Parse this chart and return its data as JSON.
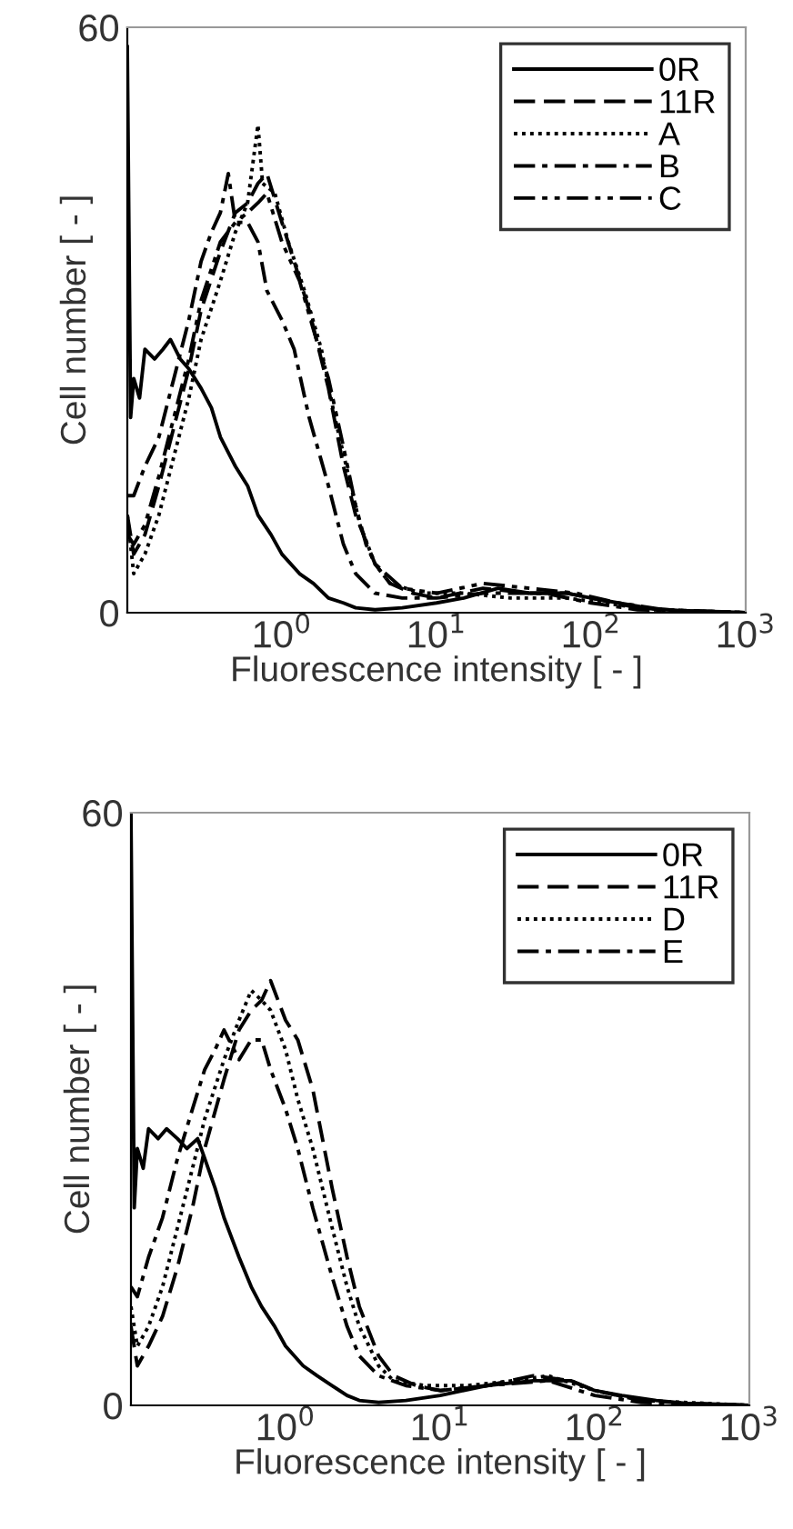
{
  "chart_data": [
    {
      "type": "line",
      "xlabel": "Fluorescence intensity [ - ]",
      "ylabel": "Cell number [ - ]",
      "log": "x",
      "xlim": [
        0.1,
        1000
      ],
      "ylim": [
        0,
        60
      ],
      "xticks": [
        {
          "value": 1,
          "label": "10$^{0}$"
        },
        {
          "value": 10,
          "label": "10$^{1}$"
        },
        {
          "value": 100,
          "label": "10$^{2}$"
        },
        {
          "value": 1000,
          "label": "10$^{3}$"
        }
      ],
      "yticks": [
        0,
        60
      ],
      "grid": false,
      "legend": "top right",
      "marker": "none",
      "series": [
        {
          "name": "0R",
          "color": "#000000",
          "line_style": "solid",
          "x": [
            0.1,
            0.105,
            0.11,
            0.12,
            0.13,
            0.15,
            0.17,
            0.19,
            0.22,
            0.25,
            0.3,
            0.35,
            0.4,
            0.5,
            0.6,
            0.7,
            0.85,
            1,
            1.3,
            1.6,
            2,
            2.5,
            3,
            4,
            6,
            10,
            15,
            25,
            40,
            70,
            100,
            150,
            250,
            400,
            700,
            1000
          ],
          "values": [
            58,
            20,
            24,
            22,
            27,
            26,
            27,
            28,
            26,
            25,
            23,
            21,
            18,
            15,
            13,
            10,
            8,
            6,
            4,
            3,
            1.5,
            1,
            0.5,
            0.3,
            0.5,
            1,
            1.5,
            2.5,
            2,
            2,
            1.5,
            1,
            0.4,
            0.2,
            0.1,
            0
          ]
        },
        {
          "name": "11R",
          "color": "#000000",
          "line_style": "dashed",
          "x": [
            0.1,
            0.11,
            0.13,
            0.16,
            0.2,
            0.25,
            0.3,
            0.4,
            0.5,
            0.6,
            0.7,
            0.8,
            1,
            1.2,
            1.5,
            2,
            2.5,
            3,
            4,
            5,
            7,
            10,
            20,
            40,
            70,
            100,
            200,
            400,
            1000
          ],
          "values": [
            10,
            6,
            8,
            13,
            19,
            25,
            31,
            37,
            41,
            42,
            44,
            45,
            40,
            36,
            31,
            23,
            15,
            10,
            5,
            3,
            2,
            1.5,
            2.5,
            2,
            2,
            1.5,
            0.5,
            0.2,
            0
          ]
        },
        {
          "name": "A",
          "color": "#000000",
          "line_style": "dotted",
          "x": [
            0.1,
            0.11,
            0.13,
            0.16,
            0.2,
            0.25,
            0.3,
            0.4,
            0.5,
            0.6,
            0.7,
            0.75,
            0.9,
            1.1,
            1.4,
            1.8,
            2.2,
            2.7,
            3.2,
            4,
            5,
            8,
            15,
            30,
            70,
            120,
            250,
            1000
          ],
          "values": [
            10,
            4,
            6,
            10,
            16,
            22,
            28,
            34,
            39,
            42,
            50,
            44,
            43,
            38,
            33,
            27,
            20,
            14,
            9,
            5,
            3,
            2,
            2,
            1.5,
            1.5,
            1,
            0.3,
            0
          ]
        },
        {
          "name": "B",
          "color": "#000000",
          "line_style": "dashdot",
          "x": [
            0.1,
            0.11,
            0.13,
            0.16,
            0.2,
            0.25,
            0.3,
            0.35,
            0.4,
            0.45,
            0.5,
            0.6,
            0.7,
            0.8,
            1,
            1.2,
            1.5,
            2,
            2.5,
            3,
            4,
            6,
            10,
            20,
            50,
            100,
            200,
            1000
          ],
          "values": [
            12,
            12,
            15,
            18,
            24,
            30,
            36,
            39,
            41,
            45,
            40,
            40,
            38,
            33,
            30,
            27,
            20,
            13,
            7,
            4,
            2,
            1.5,
            1.5,
            2,
            2,
            1,
            0.3,
            0
          ]
        },
        {
          "name": "C",
          "color": "#000000",
          "line_style": "dashdotdot",
          "x": [
            0.1,
            0.11,
            0.13,
            0.16,
            0.2,
            0.25,
            0.3,
            0.4,
            0.5,
            0.6,
            0.7,
            0.8,
            1,
            1.3,
            1.6,
            2,
            2.5,
            3,
            3.5,
            4,
            6,
            10,
            20,
            40,
            80,
            150,
            300,
            1000
          ],
          "values": [
            8,
            7,
            9,
            14,
            20,
            26,
            32,
            38,
            40,
            41,
            42,
            43,
            38,
            34,
            29,
            24,
            17,
            11,
            7,
            5,
            2.5,
            2,
            3,
            2.5,
            2,
            1,
            0.3,
            0
          ]
        }
      ]
    },
    {
      "type": "line",
      "xlabel": "Fluorescence intensity [ - ]",
      "ylabel": "Cell number [ - ]",
      "log": "x",
      "xlim": [
        0.1,
        1000
      ],
      "ylim": [
        0,
        60
      ],
      "xticks": [
        {
          "value": 1,
          "label": "10$^{0}$"
        },
        {
          "value": 10,
          "label": "10$^{1}$"
        },
        {
          "value": 100,
          "label": "10$^{2}$"
        },
        {
          "value": 1000,
          "label": "10$^{3}$"
        }
      ],
      "yticks": [
        0,
        60
      ],
      "grid": false,
      "legend": "top right",
      "marker": "none",
      "series": [
        {
          "name": "0R",
          "color": "#000000",
          "line_style": "solid",
          "x": [
            0.1,
            0.105,
            0.11,
            0.12,
            0.13,
            0.15,
            0.17,
            0.2,
            0.23,
            0.27,
            0.3,
            0.35,
            0.4,
            0.5,
            0.6,
            0.7,
            0.85,
            1,
            1.3,
            1.6,
            2,
            2.5,
            3,
            4,
            6,
            10,
            20,
            40,
            70,
            100,
            150,
            250,
            400,
            700,
            1000
          ],
          "values": [
            60,
            20,
            26,
            24,
            28,
            27,
            28,
            27,
            26,
            27,
            25,
            22,
            19,
            15,
            12,
            10,
            8,
            6,
            4,
            3,
            2,
            1,
            0.5,
            0.3,
            0.5,
            1,
            2,
            2.5,
            2.5,
            1.5,
            1,
            0.5,
            0.2,
            0.1,
            0
          ]
        },
        {
          "name": "11R",
          "color": "#000000",
          "line_style": "dashed",
          "x": [
            0.1,
            0.11,
            0.13,
            0.16,
            0.2,
            0.25,
            0.3,
            0.4,
            0.5,
            0.6,
            0.7,
            0.8,
            1,
            1.2,
            1.5,
            2,
            2.5,
            3,
            4,
            5,
            7,
            10,
            20,
            40,
            70,
            100,
            200,
            400,
            1000
          ],
          "values": [
            8,
            4,
            6,
            9,
            14,
            20,
            26,
            33,
            38,
            40,
            41,
            43,
            39,
            37,
            32,
            22,
            15,
            10,
            5,
            3,
            2,
            1.5,
            2,
            3,
            2.5,
            1.5,
            0.5,
            0.2,
            0
          ]
        },
        {
          "name": "D",
          "color": "#000000",
          "line_style": "dotted",
          "x": [
            0.1,
            0.11,
            0.13,
            0.16,
            0.2,
            0.25,
            0.3,
            0.4,
            0.5,
            0.6,
            0.7,
            0.8,
            1,
            1.2,
            1.5,
            2,
            2.5,
            3,
            4,
            5,
            8,
            15,
            30,
            50,
            100,
            200,
            1000
          ],
          "values": [
            10,
            6,
            8,
            12,
            18,
            24,
            29,
            35,
            39,
            42,
            41,
            40,
            36,
            31,
            26,
            18,
            12,
            8,
            4,
            2.5,
            2,
            2,
            2.5,
            3,
            1.5,
            0.5,
            0
          ]
        },
        {
          "name": "E",
          "color": "#000000",
          "line_style": "dashdot",
          "x": [
            0.1,
            0.11,
            0.13,
            0.16,
            0.2,
            0.25,
            0.3,
            0.35,
            0.4,
            0.5,
            0.6,
            0.7,
            0.8,
            1,
            1.2,
            1.5,
            2,
            2.5,
            3,
            4,
            6,
            10,
            20,
            50,
            100,
            200,
            1000
          ],
          "values": [
            12,
            11,
            15,
            19,
            25,
            30,
            34,
            36,
            38,
            35,
            37,
            37,
            34,
            30,
            26,
            20,
            13,
            8,
            5,
            3,
            2,
            1.5,
            2,
            2.5,
            1,
            0.3,
            0
          ]
        }
      ]
    }
  ]
}
